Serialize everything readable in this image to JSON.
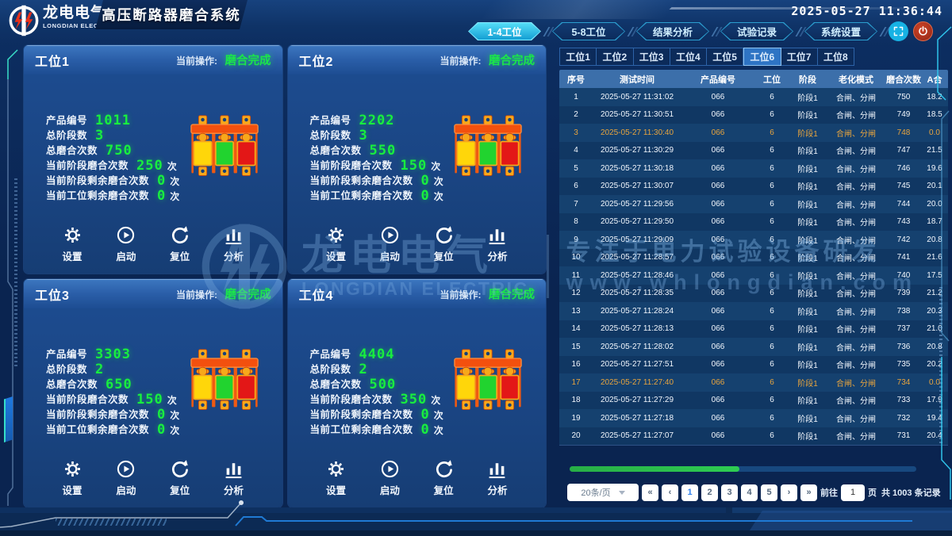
{
  "header": {
    "logo_cn": "龙电电气",
    "logo_en": "LONGDIAN ELECTRIC",
    "app_title": "高压断路器磨合系统",
    "datetime": "2025-05-27 11:36:44",
    "nav": [
      {
        "label": "1-4工位",
        "name": "nav-stations-1-4",
        "active": true
      },
      {
        "label": "5-8工位",
        "name": "nav-stations-5-8",
        "active": false
      },
      {
        "label": "结果分析",
        "name": "nav-result-analysis",
        "active": false
      },
      {
        "label": "试验记录",
        "name": "nav-test-records",
        "active": false
      },
      {
        "label": "系统设置",
        "name": "nav-system-settings",
        "active": false
      }
    ]
  },
  "station_fields": [
    {
      "label": "产品编号",
      "suffix": ""
    },
    {
      "label": "总阶段数",
      "suffix": ""
    },
    {
      "label": "总磨合次数",
      "suffix": ""
    },
    {
      "label": "当前阶段磨合次数",
      "suffix": "次"
    },
    {
      "label": "当前阶段剩余磨合次数",
      "suffix": "次"
    },
    {
      "label": "当前工位剩余磨合次数",
      "suffix": "次"
    }
  ],
  "station_buttons": [
    {
      "label": "设置",
      "icon": "gear",
      "name": "settings-button"
    },
    {
      "label": "启动",
      "icon": "play",
      "name": "start-button"
    },
    {
      "label": "复位",
      "icon": "reset",
      "name": "reset-button"
    },
    {
      "label": "分析",
      "icon": "chart",
      "name": "analyze-button"
    }
  ],
  "stations": [
    {
      "title": "工位1",
      "op_label": "当前操作:",
      "op_value": "磨合完成",
      "values": [
        "1011",
        "3",
        "750",
        "250",
        "0",
        "0"
      ]
    },
    {
      "title": "工位2",
      "op_label": "当前操作:",
      "op_value": "磨合完成",
      "values": [
        "2202",
        "3",
        "550",
        "150",
        "0",
        "0"
      ]
    },
    {
      "title": "工位3",
      "op_label": "当前操作:",
      "op_value": "磨合完成",
      "values": [
        "3303",
        "2",
        "650",
        "150",
        "0",
        "0"
      ]
    },
    {
      "title": "工位4",
      "op_label": "当前操作:",
      "op_value": "磨合完成",
      "values": [
        "4404",
        "2",
        "500",
        "350",
        "0",
        "0"
      ]
    }
  ],
  "table": {
    "tabs": [
      "工位1",
      "工位2",
      "工位3",
      "工位4",
      "工位5",
      "工位6",
      "工位7",
      "工位8"
    ],
    "active_tab": 5,
    "columns": [
      "序号",
      "测试时间",
      "产品编号",
      "工位",
      "阶段",
      "老化模式",
      "磨合次数",
      "A合"
    ],
    "rows": [
      {
        "cells": [
          "1",
          "2025-05-27 11:31:02",
          "066",
          "6",
          "阶段1",
          "合闸、分闸",
          "750",
          "18.2"
        ],
        "hl": false
      },
      {
        "cells": [
          "2",
          "2025-05-27 11:30:51",
          "066",
          "6",
          "阶段1",
          "合闸、分闸",
          "749",
          "18.5"
        ],
        "hl": false
      },
      {
        "cells": [
          "3",
          "2025-05-27 11:30:40",
          "066",
          "6",
          "阶段1",
          "合闸、分闸",
          "748",
          "0.0"
        ],
        "hl": true
      },
      {
        "cells": [
          "4",
          "2025-05-27 11:30:29",
          "066",
          "6",
          "阶段1",
          "合闸、分闸",
          "747",
          "21.5"
        ],
        "hl": false
      },
      {
        "cells": [
          "5",
          "2025-05-27 11:30:18",
          "066",
          "6",
          "阶段1",
          "合闸、分闸",
          "746",
          "19.6"
        ],
        "hl": false
      },
      {
        "cells": [
          "6",
          "2025-05-27 11:30:07",
          "066",
          "6",
          "阶段1",
          "合闸、分闸",
          "745",
          "20.1"
        ],
        "hl": false
      },
      {
        "cells": [
          "7",
          "2025-05-27 11:29:56",
          "066",
          "6",
          "阶段1",
          "合闸、分闸",
          "744",
          "20.0"
        ],
        "hl": false
      },
      {
        "cells": [
          "8",
          "2025-05-27 11:29:50",
          "066",
          "6",
          "阶段1",
          "合闸、分闸",
          "743",
          "18.7"
        ],
        "hl": false
      },
      {
        "cells": [
          "9",
          "2025-05-27 11:29:09",
          "066",
          "6",
          "阶段1",
          "合闸、分闸",
          "742",
          "20.8"
        ],
        "hl": false
      },
      {
        "cells": [
          "10",
          "2025-05-27 11:28:57",
          "066",
          "6",
          "阶段1",
          "合闸、分闸",
          "741",
          "21.6"
        ],
        "hl": false
      },
      {
        "cells": [
          "11",
          "2025-05-27 11:28:46",
          "066",
          "6",
          "阶段1",
          "合闸、分闸",
          "740",
          "17.5"
        ],
        "hl": false
      },
      {
        "cells": [
          "12",
          "2025-05-27 11:28:35",
          "066",
          "6",
          "阶段1",
          "合闸、分闸",
          "739",
          "21.2"
        ],
        "hl": false
      },
      {
        "cells": [
          "13",
          "2025-05-27 11:28:24",
          "066",
          "6",
          "阶段1",
          "合闸、分闸",
          "738",
          "20.3"
        ],
        "hl": false
      },
      {
        "cells": [
          "14",
          "2025-05-27 11:28:13",
          "066",
          "6",
          "阶段1",
          "合闸、分闸",
          "737",
          "21.0"
        ],
        "hl": false
      },
      {
        "cells": [
          "15",
          "2025-05-27 11:28:02",
          "066",
          "6",
          "阶段1",
          "合闸、分闸",
          "736",
          "20.8"
        ],
        "hl": false
      },
      {
        "cells": [
          "16",
          "2025-05-27 11:27:51",
          "066",
          "6",
          "阶段1",
          "合闸、分闸",
          "735",
          "20.2"
        ],
        "hl": false
      },
      {
        "cells": [
          "17",
          "2025-05-27 11:27:40",
          "066",
          "6",
          "阶段1",
          "合闸、分闸",
          "734",
          "0.0"
        ],
        "hl": true
      },
      {
        "cells": [
          "18",
          "2025-05-27 11:27:29",
          "066",
          "6",
          "阶段1",
          "合闸、分闸",
          "733",
          "17.9"
        ],
        "hl": false
      },
      {
        "cells": [
          "19",
          "2025-05-27 11:27:18",
          "066",
          "6",
          "阶段1",
          "合闸、分闸",
          "732",
          "19.4"
        ],
        "hl": false
      },
      {
        "cells": [
          "20",
          "2025-05-27 11:27:07",
          "066",
          "6",
          "阶段1",
          "合闸、分闸",
          "731",
          "20.4"
        ],
        "hl": false
      }
    ]
  },
  "progress": {
    "percent": 49
  },
  "pagination": {
    "page_size": "20条/页",
    "first": "«",
    "prev": "‹",
    "pages": [
      "1",
      "2",
      "3",
      "4",
      "5"
    ],
    "active_page": "1",
    "next": "›",
    "last": "»",
    "goto_label": "前往",
    "goto_value": "1",
    "page_word": "页",
    "total_text": "共 1003 条记录"
  },
  "watermark": {
    "cn": "龙电电气",
    "en": "LONGDIAN ELECTRIC",
    "slogan": "专注于电力试验设备研发",
    "url": "www.whlongdian.com"
  },
  "colors": {
    "accent_cyan": "#17b2e4",
    "value_green": "#18ee3f",
    "status_green": "#1be54a",
    "highlight_orange": "#e7a43e",
    "progress_green": "#2ecc52",
    "active_page_blue": "#2f80ed"
  }
}
